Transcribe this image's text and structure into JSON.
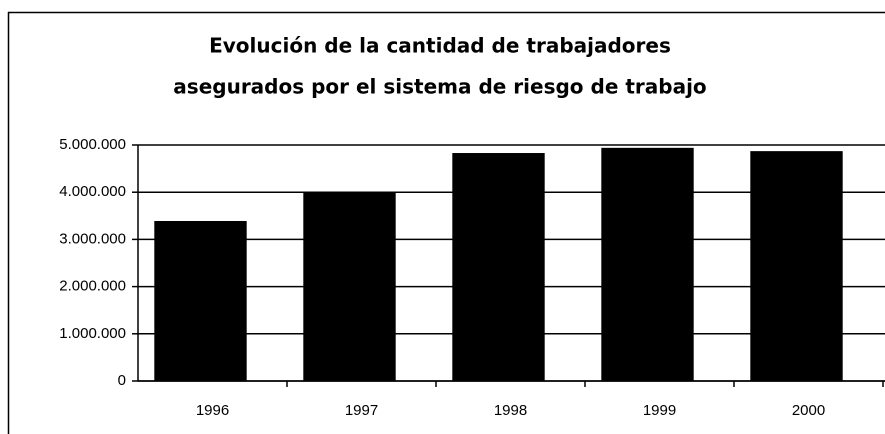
{
  "chart_data": {
    "type": "bar",
    "title": [
      "Evolución de la cantidad de trabajadores",
      "asegurados por el sistema de riesgo de trabajo"
    ],
    "categories": [
      "1996",
      "1997",
      "1998",
      "1999",
      "2000"
    ],
    "values": [
      3390000,
      4000000,
      4830000,
      4940000,
      4870000
    ],
    "color": "#000000",
    "ylim": [
      0,
      5000000
    ],
    "yticks": [
      0,
      {
        "value": 1000000,
        "label": "1.000.000"
      },
      {
        "value": 2000000,
        "label": "2.000.000"
      },
      {
        "value": 3000000,
        "label": "3.000.000"
      },
      {
        "value": 4000000,
        "label": "4.000.000"
      },
      {
        "value": 5000000,
        "label": "5.000.000"
      }
    ],
    "grid": true
  }
}
